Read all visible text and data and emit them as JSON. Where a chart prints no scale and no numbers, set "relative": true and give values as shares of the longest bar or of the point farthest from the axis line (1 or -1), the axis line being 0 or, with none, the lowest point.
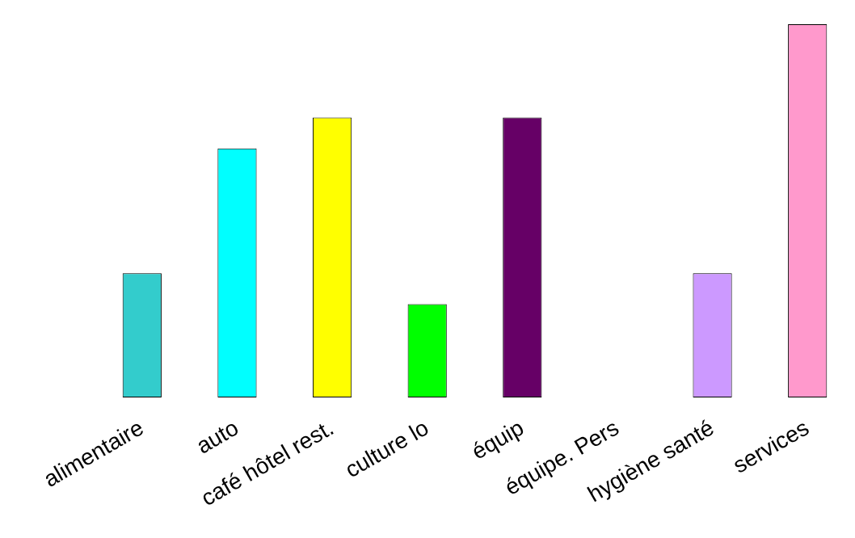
{
  "chart_data": {
    "type": "bar",
    "categories": [
      "alimentaire",
      "auto",
      "café hôtel rest.",
      "culture lo",
      "équip",
      "équipe. Pers",
      "hygiène santé",
      "services"
    ],
    "values": [
      0.333,
      0.667,
      0.75,
      0.25,
      0.75,
      0,
      0.333,
      1
    ],
    "colors": [
      "#33cccc",
      "#00ffff",
      "#ffff00",
      "#00ff00",
      "#660066",
      "#c06060",
      "#cc99ff",
      "#ff99cc"
    ],
    "relative": true
  }
}
